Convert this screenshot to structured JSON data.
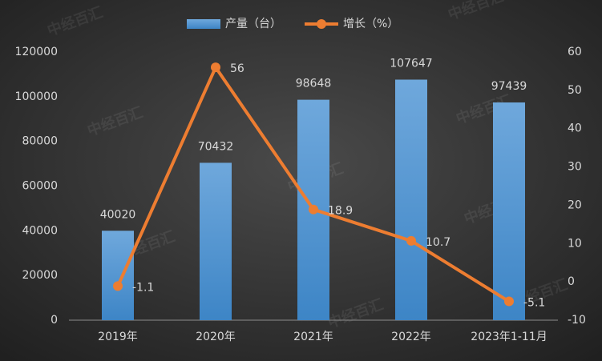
{
  "chart_data": {
    "type": "combo",
    "watermark": "中经百汇",
    "categories": [
      "2019年",
      "2020年",
      "2021年",
      "2022年",
      "2023年1-11月"
    ],
    "series": [
      {
        "name": "产量（台）",
        "type": "bar",
        "color": "#5b9bd5",
        "values": [
          40020,
          70432,
          98648,
          107647,
          97439
        ]
      },
      {
        "name": "增长（%）",
        "type": "line",
        "color": "#ed7d31",
        "axis": "y2",
        "values": [
          -1.1,
          56,
          18.9,
          10.7,
          -5.1
        ]
      }
    ],
    "ylim": [
      0,
      120000
    ],
    "yticks": [
      0,
      20000,
      40000,
      60000,
      80000,
      100000,
      120000
    ],
    "y2lim": [
      -10,
      60
    ],
    "y2ticks": [
      -10,
      0,
      10,
      20,
      30,
      40,
      50,
      60
    ],
    "legend": "top",
    "grid": false
  }
}
